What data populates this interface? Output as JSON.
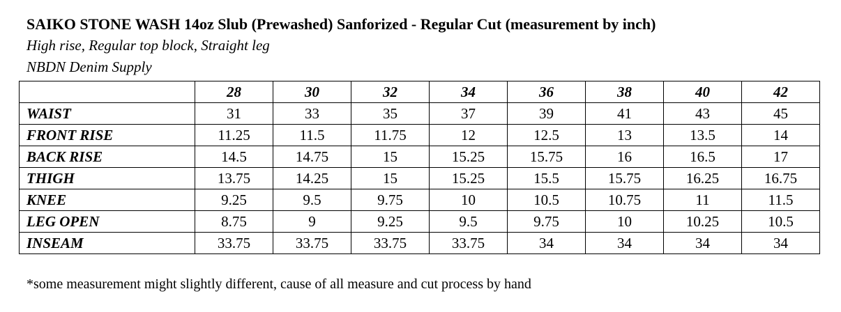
{
  "header": {
    "title": "SAIKO STONE WASH 14oz Slub (Prewashed) Sanforized - Regular Cut (measurement by inch)",
    "subtitle": "High rise, Regular top block, Straight leg",
    "brand": "NBDN Denim Supply"
  },
  "table": {
    "columns": [
      28,
      30,
      32,
      34,
      36,
      38,
      40,
      42
    ],
    "rows": [
      {
        "label": "WAIST",
        "values": [
          31,
          33,
          35,
          37,
          39,
          41,
          43,
          45
        ]
      },
      {
        "label": "FRONT RISE",
        "values": [
          11.25,
          11.5,
          11.75,
          12,
          12.5,
          13,
          13.5,
          14
        ]
      },
      {
        "label": "BACK RISE",
        "values": [
          14.5,
          14.75,
          15,
          15.25,
          15.75,
          16,
          16.5,
          17
        ]
      },
      {
        "label": "THIGH",
        "values": [
          13.75,
          14.25,
          15,
          15.25,
          15.5,
          15.75,
          16.25,
          16.75
        ]
      },
      {
        "label": "KNEE",
        "values": [
          9.25,
          9.5,
          9.75,
          10,
          10.5,
          10.75,
          11,
          11.5
        ]
      },
      {
        "label": "LEG OPEN",
        "values": [
          8.75,
          9,
          9.25,
          9.5,
          9.75,
          10,
          10.25,
          10.5
        ]
      },
      {
        "label": "INSEAM",
        "values": [
          33.75,
          33.75,
          33.75,
          33.75,
          34,
          34,
          34,
          34
        ]
      }
    ]
  },
  "footnote": "*some measurement might slightly different, cause of all measure and cut process by hand"
}
